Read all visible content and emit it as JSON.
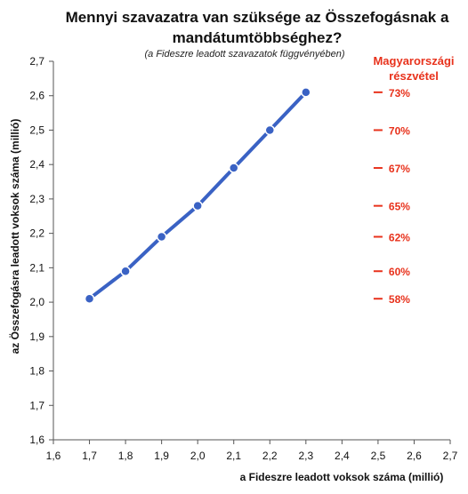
{
  "chart_data": {
    "type": "line",
    "title_line1": "Mennyi szavazatra van szüksége az Összefogásnak a",
    "title_line2": "mandátumtöbbséghez?",
    "subtitle": "(a Fideszre  leadott szavazatok függvényében)",
    "xlabel": "a Fideszre leadott voksok száma (millió)",
    "ylabel": "az Összefogásra leadott voksok száma (millió)",
    "xlim": [
      1.6,
      2.7
    ],
    "ylim": [
      1.6,
      2.7
    ],
    "x_ticks": [
      "1,6",
      "1,7",
      "1,8",
      "1,9",
      "2,0",
      "2,1",
      "2,2",
      "2,3",
      "2,4",
      "2,5",
      "2,6",
      "2,7"
    ],
    "y_ticks": [
      "1,6",
      "1,7",
      "1,8",
      "1,9",
      "2,0",
      "2,1",
      "2,2",
      "2,3",
      "2,4",
      "2,5",
      "2,6",
      "2,7"
    ],
    "grid": false,
    "series": [
      {
        "color": "#3a62c4",
        "x": [
          1.7,
          1.8,
          1.9,
          2.0,
          2.1,
          2.2,
          2.3
        ],
        "y": [
          2.01,
          2.09,
          2.19,
          2.28,
          2.39,
          2.5,
          2.61
        ]
      }
    ],
    "turnout": {
      "label_line1": "Magyarországi",
      "label_line2": "részvétel",
      "color": "#e8321c",
      "x": 2.5,
      "marks": [
        {
          "y": 2.01,
          "label": "58%"
        },
        {
          "y": 2.09,
          "label": "60%"
        },
        {
          "y": 2.19,
          "label": "62%"
        },
        {
          "y": 2.28,
          "label": "65%"
        },
        {
          "y": 2.39,
          "label": "67%"
        },
        {
          "y": 2.5,
          "label": "70%"
        },
        {
          "y": 2.61,
          "label": "73%"
        }
      ]
    }
  }
}
